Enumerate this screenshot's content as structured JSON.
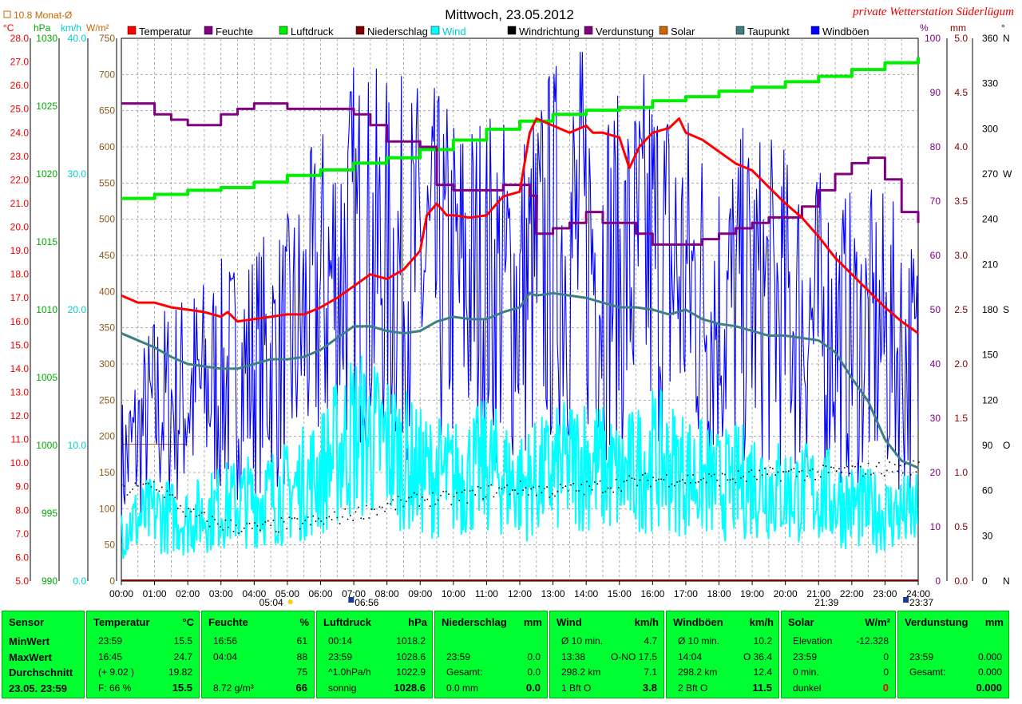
{
  "title": "Mittwoch, 23.05.2012",
  "station": "private Wetterstation Süderlügum",
  "monthly_avg_label": "10.8 Monat-Ø",
  "unit_headers": [
    "°C",
    "hPa",
    "km/h",
    "W/m²",
    "%",
    "mm",
    "°"
  ],
  "legend": [
    {
      "label": "Temperatur",
      "color": "#ff0000"
    },
    {
      "label": "Feuchte",
      "color": "#800080"
    },
    {
      "label": "Luftdruck",
      "color": "#00ee00"
    },
    {
      "label": "Niederschlag",
      "color": "#800000"
    },
    {
      "label": "Wind",
      "color": "#00ffff"
    },
    {
      "label": "Windrichtung",
      "color": "#000000"
    },
    {
      "label": "Verdunstung",
      "color": "#800080"
    },
    {
      "label": "Solar",
      "color": "#cc6600"
    },
    {
      "label": "Taupunkt",
      "color": "#3f7f7f"
    },
    {
      "label": "Windböen",
      "color": "#0000ff"
    }
  ],
  "axes": {
    "temp_ticks": [
      "5.0",
      "6.0",
      "7.0",
      "8.0",
      "9.0",
      "10.0",
      "11.0",
      "12.0",
      "13.0",
      "14.0",
      "15.0",
      "16.0",
      "17.0",
      "18.0",
      "19.0",
      "20.0",
      "21.0",
      "22.0",
      "23.0",
      "24.0",
      "25.0",
      "26.0",
      "27.0",
      "28.0"
    ],
    "pressure_ticks": [
      "990",
      "995",
      "1000",
      "1005",
      "1010",
      "1015",
      "1020",
      "1025",
      "1030"
    ],
    "wind_ticks": [
      "0.0",
      "10.0",
      "20.0",
      "30.0",
      "40.0"
    ],
    "solar_ticks": [
      "0",
      "50",
      "100",
      "150",
      "200",
      "250",
      "300",
      "350",
      "400",
      "450",
      "500",
      "550",
      "600",
      "650",
      "700",
      "750"
    ],
    "humidity_ticks": [
      "0",
      "10",
      "20",
      "30",
      "40",
      "50",
      "60",
      "70",
      "80",
      "90",
      "100"
    ],
    "rain_ticks": [
      "0.0",
      "0.5",
      "1.0",
      "1.5",
      "2.0",
      "2.5",
      "3.0",
      "3.5",
      "4.0",
      "4.5",
      "5.0"
    ],
    "dir_ticks": [
      "0",
      "N",
      "30",
      "60",
      "90",
      "O",
      "120",
      "150",
      "180",
      "S",
      "210",
      "240",
      "270",
      "W",
      "300",
      "330",
      "360",
      "N"
    ],
    "x_ticks": [
      "00:00",
      "01:00",
      "02:00",
      "03:00",
      "04:00",
      "05:00",
      "06:00",
      "07:00",
      "08:00",
      "09:00",
      "10:00",
      "11:00",
      "12:00",
      "13:00",
      "14:00",
      "15:00",
      "16:00",
      "17:00",
      "18:00",
      "19:00",
      "20:00",
      "21:00",
      "22:00",
      "23:00",
      "24:00"
    ],
    "sunrise": "05:04",
    "solar_noon": "06:56",
    "sunset": "21:39",
    "last_update": "23:37"
  },
  "chart_data": {
    "type": "line",
    "title": "Mittwoch, 23.05.2012",
    "x_unit": "hour",
    "xlim": [
      0,
      24
    ],
    "grid": true,
    "series": [
      {
        "name": "Temperatur",
        "color": "#ff0000",
        "axis": "°C",
        "ylim": [
          5,
          28
        ],
        "x": [
          0,
          0.5,
          1,
          1.5,
          2,
          2.5,
          3,
          3.2,
          3.5,
          4,
          4.5,
          5,
          5.5,
          6,
          6.5,
          7,
          7.5,
          8,
          8.5,
          9,
          9.2,
          9.5,
          9.8,
          10,
          10.5,
          11,
          11.5,
          12,
          12.3,
          12.5,
          13,
          13.5,
          14,
          14.2,
          14.5,
          15,
          15.3,
          15.6,
          16,
          16.5,
          16.8,
          17,
          17.5,
          18,
          18.5,
          19,
          19.5,
          20,
          20.5,
          21,
          21.5,
          22,
          22.5,
          23,
          23.5,
          24
        ],
        "y": [
          17.1,
          16.8,
          16.8,
          16.6,
          16.5,
          16.4,
          16.2,
          16.4,
          16.0,
          16.1,
          16.2,
          16.3,
          16.3,
          16.6,
          17.0,
          17.5,
          18.0,
          17.8,
          18.2,
          19.0,
          20.5,
          21.0,
          20.5,
          20.5,
          20.4,
          20.5,
          21.3,
          21.5,
          24.0,
          24.6,
          24.3,
          24.0,
          24.3,
          24.0,
          24.0,
          23.8,
          22.5,
          23.4,
          24.0,
          24.2,
          24.6,
          24.0,
          23.7,
          23.2,
          22.7,
          22.4,
          21.7,
          21.0,
          20.4,
          19.6,
          18.7,
          18.0,
          17.3,
          16.6,
          16.0,
          15.5
        ]
      },
      {
        "name": "Feuchte",
        "color": "#800080",
        "axis": "%",
        "ylim": [
          0,
          100
        ],
        "x": [
          0,
          0.5,
          1,
          1.5,
          2,
          2.5,
          3,
          3.5,
          4,
          4.5,
          5,
          5.5,
          6,
          6.5,
          7,
          7.5,
          8,
          8.5,
          9,
          9.5,
          10,
          10.5,
          11,
          11.5,
          12,
          12.3,
          12.5,
          13,
          13.5,
          14,
          14.5,
          15,
          15.5,
          16,
          16.5,
          17,
          17.5,
          18,
          18.5,
          19,
          19.5,
          20,
          20.5,
          21,
          21.5,
          22,
          22.5,
          23,
          23.5,
          24
        ],
        "y": [
          88,
          88,
          86,
          85,
          84,
          84,
          86,
          87,
          88,
          88,
          87,
          87,
          87,
          87,
          86,
          84,
          81,
          81,
          80,
          73,
          72,
          72,
          72,
          73,
          73,
          71,
          64,
          65,
          66,
          68,
          66,
          66,
          64,
          62,
          62,
          62,
          63,
          64,
          65,
          66,
          67,
          67,
          69,
          72,
          75,
          77,
          78,
          74,
          68,
          66
        ]
      },
      {
        "name": "Luftdruck",
        "color": "#00ee00",
        "axis": "hPa",
        "ylim": [
          990,
          1030
        ],
        "x": [
          0,
          1,
          2,
          3,
          4,
          5,
          6,
          7,
          8,
          9,
          10,
          11,
          12,
          13,
          14,
          15,
          16,
          17,
          18,
          19,
          20,
          21,
          22,
          23,
          24
        ],
        "y": [
          1018.2,
          1018.5,
          1018.8,
          1019.0,
          1019.4,
          1019.9,
          1020.3,
          1020.8,
          1021.2,
          1021.8,
          1022.5,
          1023.3,
          1023.9,
          1024.4,
          1024.7,
          1024.9,
          1025.4,
          1025.7,
          1026.1,
          1026.4,
          1026.8,
          1027.2,
          1027.7,
          1028.2,
          1028.6
        ]
      },
      {
        "name": "Taupunkt",
        "color": "#3f7f7f",
        "axis": "°C",
        "ylim": [
          5,
          28
        ],
        "x": [
          0,
          0.5,
          1,
          1.5,
          2,
          2.5,
          3,
          3.5,
          4,
          4.5,
          5,
          5.5,
          6,
          6.5,
          7,
          7.5,
          8,
          8.5,
          9,
          9.5,
          10,
          10.5,
          11,
          11.5,
          12,
          12.3,
          12.5,
          13,
          13.5,
          14,
          14.5,
          15,
          15.5,
          16,
          16.5,
          17,
          17.5,
          18,
          18.5,
          19,
          19.5,
          20,
          20.5,
          21,
          21.5,
          22,
          22.5,
          23,
          23.5,
          24
        ],
        "y": [
          15.5,
          15.2,
          14.9,
          14.5,
          14.2,
          14.1,
          14.0,
          14.0,
          14.2,
          14.4,
          14.4,
          14.5,
          14.8,
          15.3,
          15.8,
          15.8,
          15.6,
          15.5,
          15.6,
          16.0,
          16.2,
          16.1,
          16.1,
          16.4,
          16.6,
          17.2,
          17.1,
          17.2,
          17.1,
          17.0,
          16.8,
          16.6,
          16.6,
          16.5,
          16.3,
          16.5,
          16.1,
          15.9,
          15.8,
          15.6,
          15.4,
          15.4,
          15.3,
          15.2,
          14.7,
          13.6,
          12.6,
          11.0,
          10.1,
          9.8
        ]
      },
      {
        "name": "Wind",
        "color": "#00ffff",
        "axis": "km/h",
        "ylim": [
          0,
          40
        ],
        "x": [
          0,
          1,
          2,
          3,
          4,
          5,
          6,
          7,
          8,
          9,
          10,
          11,
          12,
          13,
          14,
          15,
          16,
          17,
          18,
          19,
          20,
          21,
          22,
          23,
          24
        ],
        "y": [
          4.0,
          5.0,
          4.5,
          5.5,
          6.0,
          6.5,
          8.0,
          11.0,
          10.0,
          8.0,
          7.5,
          8.5,
          7.0,
          8.0,
          9.0,
          7.5,
          9.0,
          8.0,
          7.0,
          7.5,
          6.5,
          6.5,
          5.5,
          5.0,
          5.0
        ]
      },
      {
        "name": "Windböen",
        "color": "#0000ff",
        "axis": "km/h",
        "ylim": [
          0,
          40
        ],
        "x": [
          0,
          1,
          2,
          3,
          4,
          5,
          6,
          7,
          8,
          9,
          10,
          11,
          12,
          13,
          14,
          15,
          16,
          17,
          18,
          19,
          20,
          21,
          22,
          23,
          24
        ],
        "y": [
          8,
          12,
          13,
          14,
          15,
          16,
          20,
          23,
          22,
          22,
          21,
          21,
          20,
          23,
          24,
          21,
          23,
          21,
          19,
          20,
          19,
          18,
          17,
          17,
          15
        ]
      },
      {
        "name": "Windrichtung",
        "color": "#000000",
        "axis": "°",
        "ylim": [
          0,
          360
        ],
        "x": [
          0,
          1,
          2,
          3,
          4,
          5,
          6,
          7,
          8,
          9,
          10,
          11,
          12,
          13,
          14,
          15,
          16,
          17,
          18,
          19,
          20,
          21,
          22,
          23,
          24
        ],
        "y": [
          60,
          65,
          45,
          38,
          35,
          38,
          40,
          45,
          50,
          55,
          55,
          60,
          62,
          60,
          62,
          65,
          68,
          68,
          68,
          70,
          72,
          72,
          74,
          75,
          76
        ]
      }
    ]
  },
  "table": {
    "headers": [
      {
        "label": "Sensor",
        "unit": ""
      },
      {
        "label": "Temperatur",
        "unit": "°C"
      },
      {
        "label": "Feuchte",
        "unit": "%"
      },
      {
        "label": "Luftdruck",
        "unit": "hPa"
      },
      {
        "label": "Niederschlag",
        "unit": "mm"
      },
      {
        "label": "Wind",
        "unit": "km/h"
      },
      {
        "label": "Windböen",
        "unit": "km/h"
      },
      {
        "label": "Solar",
        "unit": "W/m²"
      },
      {
        "label": "Verdunstung",
        "unit": "mm"
      }
    ],
    "sensor_rows": [
      "MinWert",
      "MaxWert",
      "Durchschnitt",
      "23.05. 23:59"
    ],
    "temperatur": [
      [
        "23:59",
        "15.5"
      ],
      [
        "16:45",
        "24.7"
      ],
      [
        "(+ 9.02 )",
        "19.82"
      ],
      [
        "F: 66 %",
        "15.5"
      ]
    ],
    "feuchte": [
      [
        "16:56",
        "61"
      ],
      [
        "04:04",
        "88"
      ],
      [
        "",
        "75"
      ],
      [
        "8.72 g/m³",
        "66"
      ]
    ],
    "luftdruck": [
      [
        "00:14",
        "1018.2"
      ],
      [
        "23:59",
        "1028.6"
      ],
      [
        "^1.0hPa/h",
        "1022.9"
      ],
      [
        "sonnig",
        "1028.6"
      ]
    ],
    "niederschlag": [
      [
        "",
        ""
      ],
      [
        "23:59",
        "0.0"
      ],
      [
        "Gesamt:",
        "0.0"
      ],
      [
        "0.0 mm",
        "0.0"
      ]
    ],
    "wind": [
      [
        "Ø 10 min.",
        "4.7"
      ],
      [
        "13:38",
        "O-NO 17.5"
      ],
      [
        "298.2 km",
        "7.1"
      ],
      [
        "1 Bft O",
        "3.8"
      ]
    ],
    "windboeen": [
      [
        "Ø 10 min.",
        "10.2"
      ],
      [
        "14:04",
        "O 36.4"
      ],
      [
        "298.2 km",
        "12.4"
      ],
      [
        "2 Bft O",
        "11.5"
      ]
    ],
    "solar": [
      [
        "Elevation",
        "-12.328"
      ],
      [
        "23:59",
        "0"
      ],
      [
        "0 min.",
        "0"
      ],
      [
        "dunkel",
        "0"
      ]
    ],
    "verdunstung": [
      [
        "",
        ""
      ],
      [
        "23:59",
        "0.000"
      ],
      [
        "Gesamt:",
        "0.000"
      ],
      [
        "",
        "0.000"
      ]
    ]
  },
  "colors": {
    "accent_green": "#00ff30",
    "grid": "#a0a0a0"
  }
}
